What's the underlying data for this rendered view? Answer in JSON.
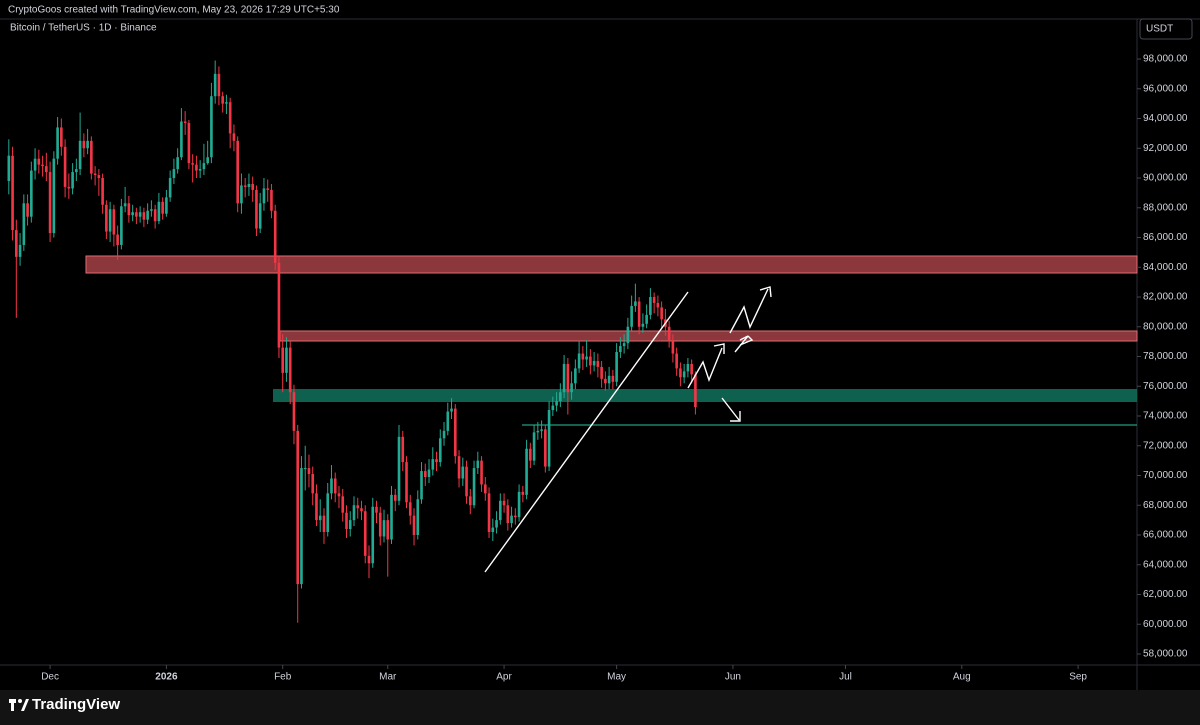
{
  "chart_data": {
    "type": "candlestick",
    "attribution": "CryptoGoos created with TradingView.com, May 23, 2026 17:29 UTC+5:30",
    "title": "Bitcoin / TetherUS · 1D · Binance",
    "currency": "USDT",
    "brand": "TradingView",
    "up_color": "#22ab94",
    "down_color": "#f23645",
    "ylim": [
      57260,
      100960
    ],
    "yticks": [
      {
        "value": 58000,
        "label": "58,000.00"
      },
      {
        "value": 60000,
        "label": "60,000.00"
      },
      {
        "value": 62000,
        "label": "62,000.00"
      },
      {
        "value": 64000,
        "label": "64,000.00"
      },
      {
        "value": 66000,
        "label": "66,000.00"
      },
      {
        "value": 68000,
        "label": "68,000.00"
      },
      {
        "value": 70000,
        "label": "70,000.00"
      },
      {
        "value": 72000,
        "label": "72,000.00"
      },
      {
        "value": 74000,
        "label": "74,000.00"
      },
      {
        "value": 76000,
        "label": "76,000.00"
      },
      {
        "value": 78000,
        "label": "78,000.00"
      },
      {
        "value": 80000,
        "label": "80,000.00"
      },
      {
        "value": 82000,
        "label": "82,000.00"
      },
      {
        "value": 84000,
        "label": "84,000.00"
      },
      {
        "value": 86000,
        "label": "86,000.00"
      },
      {
        "value": 88000,
        "label": "88,000.00"
      },
      {
        "value": 90000,
        "label": "90,000.00"
      },
      {
        "value": 92000,
        "label": "92,000.00"
      },
      {
        "value": 94000,
        "label": "94,000.00"
      },
      {
        "value": 96000,
        "label": "96,000.00"
      },
      {
        "value": 98000,
        "label": "98,000.00"
      }
    ],
    "xlim": [
      -2.35,
      300.7
    ],
    "xticks": [
      {
        "value": 11,
        "label": "Dec"
      },
      {
        "value": 42,
        "label": "2026"
      },
      {
        "value": 73,
        "label": "Feb"
      },
      {
        "value": 101,
        "label": "Mar"
      },
      {
        "value": 132,
        "label": "Apr"
      },
      {
        "value": 162,
        "label": "May"
      },
      {
        "value": 193,
        "label": "Jun"
      },
      {
        "value": 223,
        "label": "Jul"
      },
      {
        "value": 254,
        "label": "Aug"
      },
      {
        "value": 285,
        "label": "Sep"
      }
    ],
    "ohlc": [
      [
        89800,
        92600,
        88900,
        91500
      ],
      [
        91500,
        92100,
        85800,
        86500
      ],
      [
        86500,
        87200,
        80600,
        84700
      ],
      [
        84700,
        86300,
        84100,
        85500
      ],
      [
        85500,
        88900,
        85100,
        88300
      ],
      [
        88300,
        88900,
        86800,
        87400
      ],
      [
        87400,
        91100,
        87000,
        90500
      ],
      [
        90500,
        92000,
        89900,
        91300
      ],
      [
        91300,
        91900,
        90300,
        90900
      ],
      [
        90900,
        91500,
        90100,
        90800
      ],
      [
        90800,
        91700,
        89800,
        90400
      ],
      [
        90400,
        91100,
        85700,
        86300
      ],
      [
        86300,
        91800,
        86000,
        91300
      ],
      [
        91300,
        94100,
        90900,
        93400
      ],
      [
        93400,
        94000,
        91500,
        92100
      ],
      [
        92100,
        92600,
        88700,
        89400
      ],
      [
        89400,
        90300,
        88600,
        89300
      ],
      [
        89300,
        91000,
        88900,
        90400
      ],
      [
        90400,
        91300,
        89800,
        90600
      ],
      [
        90600,
        94400,
        90200,
        92500
      ],
      [
        92500,
        93000,
        91400,
        92000
      ],
      [
        92000,
        93300,
        91600,
        92500
      ],
      [
        92500,
        92800,
        89900,
        90300
      ],
      [
        90300,
        90800,
        89500,
        90200
      ],
      [
        90200,
        90600,
        88800,
        90000
      ],
      [
        90000,
        90300,
        87600,
        88200
      ],
      [
        88200,
        88500,
        85900,
        86400
      ],
      [
        86400,
        88400,
        85700,
        87900
      ],
      [
        87900,
        88200,
        85400,
        86200
      ],
      [
        86200,
        86800,
        84500,
        85500
      ],
      [
        85500,
        88600,
        85200,
        88100
      ],
      [
        88100,
        89400,
        87700,
        88300
      ],
      [
        88300,
        88800,
        87000,
        87500
      ],
      [
        87500,
        88200,
        87100,
        87700
      ],
      [
        87700,
        88000,
        86900,
        87400
      ],
      [
        87400,
        88100,
        87000,
        87700
      ],
      [
        87700,
        88000,
        86700,
        87200
      ],
      [
        87200,
        88300,
        86900,
        87800
      ],
      [
        87800,
        88500,
        87400,
        87900
      ],
      [
        87900,
        88200,
        86600,
        87100
      ],
      [
        87100,
        89000,
        86900,
        88400
      ],
      [
        88400,
        88700,
        87200,
        87600
      ],
      [
        87600,
        89200,
        87400,
        88700
      ],
      [
        88700,
        90500,
        88400,
        90000
      ],
      [
        90000,
        91300,
        89600,
        90600
      ],
      [
        90600,
        92000,
        90300,
        91400
      ],
      [
        91400,
        94700,
        91200,
        93800
      ],
      [
        93800,
        94500,
        92900,
        93700
      ],
      [
        93700,
        93900,
        90600,
        91000
      ],
      [
        91000,
        91600,
        89700,
        90900
      ],
      [
        90900,
        91500,
        90000,
        90500
      ],
      [
        90500,
        91200,
        90000,
        90600
      ],
      [
        90600,
        92300,
        90200,
        91000
      ],
      [
        91000,
        92500,
        90900,
        91400
      ],
      [
        91400,
        96400,
        91000,
        95500
      ],
      [
        95500,
        97900,
        95000,
        97000
      ],
      [
        97000,
        97500,
        94900,
        95500
      ],
      [
        95500,
        95800,
        94400,
        95000
      ],
      [
        95000,
        95600,
        94300,
        95100
      ],
      [
        95100,
        95400,
        92000,
        93000
      ],
      [
        93000,
        93600,
        91800,
        92500
      ],
      [
        92500,
        92800,
        87700,
        88300
      ],
      [
        88300,
        90300,
        87600,
        89500
      ],
      [
        89500,
        90000,
        88700,
        89400
      ],
      [
        89400,
        90300,
        88800,
        89600
      ],
      [
        89600,
        90100,
        88400,
        89200
      ],
      [
        89200,
        89500,
        86100,
        86600
      ],
      [
        86600,
        89000,
        86300,
        88300
      ],
      [
        88300,
        90000,
        87800,
        89300
      ],
      [
        89300,
        89900,
        88400,
        89200
      ],
      [
        89200,
        89600,
        87300,
        87800
      ],
      [
        87800,
        88200,
        83800,
        84300
      ],
      [
        84300,
        84800,
        77900,
        78600
      ],
      [
        78600,
        79500,
        75600,
        76900
      ],
      [
        76900,
        79300,
        76300,
        78600
      ],
      [
        78600,
        79000,
        74800,
        75600
      ],
      [
        75600,
        76100,
        72100,
        73000
      ],
      [
        73000,
        73400,
        60100,
        62700
      ],
      [
        62700,
        71300,
        62400,
        70500
      ],
      [
        70500,
        72000,
        69000,
        70500
      ],
      [
        70500,
        71400,
        69200,
        70100
      ],
      [
        70100,
        70600,
        68000,
        68800
      ],
      [
        68800,
        69400,
        66600,
        67000
      ],
      [
        67000,
        68400,
        66200,
        67300
      ],
      [
        67300,
        67800,
        65400,
        66200
      ],
      [
        66200,
        69500,
        65900,
        68800
      ],
      [
        68800,
        70700,
        68400,
        69800
      ],
      [
        69800,
        70200,
        68200,
        68800
      ],
      [
        68800,
        69300,
        67800,
        68600
      ],
      [
        68600,
        69100,
        66900,
        67500
      ],
      [
        67500,
        68000,
        65800,
        66400
      ],
      [
        66400,
        67600,
        65900,
        67000
      ],
      [
        67000,
        68600,
        66600,
        68000
      ],
      [
        68000,
        68500,
        67100,
        67800
      ],
      [
        67800,
        68300,
        67000,
        67600
      ],
      [
        67600,
        68000,
        64100,
        64600
      ],
      [
        64600,
        65300,
        63100,
        64100
      ],
      [
        64100,
        68500,
        63800,
        67900
      ],
      [
        67900,
        68300,
        66800,
        67500
      ],
      [
        67500,
        67900,
        65300,
        65900
      ],
      [
        65900,
        67700,
        65500,
        67000
      ],
      [
        67000,
        67400,
        63200,
        65700
      ],
      [
        65700,
        69300,
        65400,
        68700
      ],
      [
        68700,
        69100,
        67600,
        68300
      ],
      [
        68300,
        73400,
        68000,
        72600
      ],
      [
        72600,
        73000,
        70300,
        70900
      ],
      [
        70900,
        71300,
        67800,
        68200
      ],
      [
        68200,
        68700,
        66700,
        67300
      ],
      [
        67300,
        67800,
        65300,
        66000
      ],
      [
        66000,
        69000,
        65700,
        68400
      ],
      [
        68400,
        70900,
        68100,
        70300
      ],
      [
        70300,
        70800,
        69300,
        69900
      ],
      [
        69900,
        71100,
        69500,
        70400
      ],
      [
        70400,
        71900,
        70000,
        71100
      ],
      [
        71100,
        71600,
        70300,
        70900
      ],
      [
        70900,
        73100,
        70600,
        72500
      ],
      [
        72500,
        73600,
        72000,
        73000
      ],
      [
        73000,
        74900,
        72700,
        74300
      ],
      [
        74300,
        75200,
        73800,
        74500
      ],
      [
        74500,
        74800,
        70800,
        71300
      ],
      [
        71300,
        71700,
        69200,
        69800
      ],
      [
        69800,
        71200,
        69300,
        70600
      ],
      [
        70600,
        71000,
        68100,
        68600
      ],
      [
        68600,
        69100,
        67400,
        68000
      ],
      [
        68000,
        71000,
        67800,
        70500
      ],
      [
        70500,
        71600,
        70100,
        71000
      ],
      [
        71000,
        71300,
        68900,
        69400
      ],
      [
        69400,
        69900,
        68300,
        68800
      ],
      [
        68800,
        69200,
        65800,
        66200
      ],
      [
        66200,
        67100,
        65600,
        66500
      ],
      [
        66500,
        67600,
        66100,
        67000
      ],
      [
        67000,
        68800,
        66700,
        68300
      ],
      [
        68300,
        68800,
        67500,
        68000
      ],
      [
        68000,
        68400,
        66300,
        66800
      ],
      [
        66800,
        67900,
        66500,
        67300
      ],
      [
        67300,
        67800,
        66700,
        67200
      ],
      [
        67200,
        69400,
        66900,
        68900
      ],
      [
        68900,
        69300,
        68200,
        68700
      ],
      [
        68700,
        72400,
        68400,
        71800
      ],
      [
        71800,
        72200,
        70500,
        71000
      ],
      [
        71000,
        73400,
        70700,
        72900
      ],
      [
        72900,
        73600,
        72400,
        73000
      ],
      [
        73000,
        73700,
        72500,
        73100
      ],
      [
        73100,
        73400,
        70200,
        70600
      ],
      [
        70600,
        75000,
        70300,
        74400
      ],
      [
        74400,
        75300,
        74000,
        74700
      ],
      [
        74700,
        75600,
        74300,
        75000
      ],
      [
        75000,
        76200,
        74600,
        75600
      ],
      [
        75600,
        78100,
        75200,
        77500
      ],
      [
        77500,
        77900,
        74100,
        75600
      ],
      [
        75600,
        77000,
        75100,
        76200
      ],
      [
        76200,
        77800,
        75800,
        77200
      ],
      [
        77200,
        79000,
        76900,
        78200
      ],
      [
        78200,
        78700,
        77100,
        77800
      ],
      [
        77800,
        79100,
        77300,
        78000
      ],
      [
        78000,
        78500,
        76800,
        77400
      ],
      [
        77400,
        78300,
        77000,
        77700
      ],
      [
        77700,
        78200,
        76600,
        77300
      ],
      [
        77300,
        77700,
        75900,
        76500
      ],
      [
        76500,
        77000,
        75700,
        76200
      ],
      [
        76200,
        77300,
        75800,
        76700
      ],
      [
        76700,
        77100,
        75800,
        76300
      ],
      [
        76300,
        78900,
        76000,
        78300
      ],
      [
        78300,
        79300,
        77900,
        78700
      ],
      [
        78700,
        79500,
        78200,
        78900
      ],
      [
        78900,
        80600,
        78500,
        80000
      ],
      [
        80000,
        82100,
        79700,
        81400
      ],
      [
        81400,
        82900,
        81000,
        81700
      ],
      [
        81700,
        82000,
        79500,
        80000
      ],
      [
        80000,
        80900,
        79600,
        80200
      ],
      [
        80200,
        81500,
        79900,
        80800
      ],
      [
        80800,
        82600,
        80500,
        82000
      ],
      [
        82000,
        82300,
        80900,
        81600
      ],
      [
        81600,
        82100,
        80700,
        81300
      ],
      [
        81300,
        81700,
        79900,
        80500
      ],
      [
        80500,
        81200,
        79400,
        80000
      ],
      [
        80000,
        80400,
        78600,
        79100
      ],
      [
        79100,
        79500,
        77600,
        78200
      ],
      [
        78200,
        78600,
        76700,
        77200
      ],
      [
        77200,
        77600,
        76000,
        76600
      ],
      [
        76600,
        77500,
        76200,
        77000
      ],
      [
        77000,
        77900,
        76600,
        77500
      ],
      [
        77500,
        77800,
        76200,
        76800
      ],
      [
        76800,
        77000,
        74100,
        74600
      ]
    ]
  }
}
